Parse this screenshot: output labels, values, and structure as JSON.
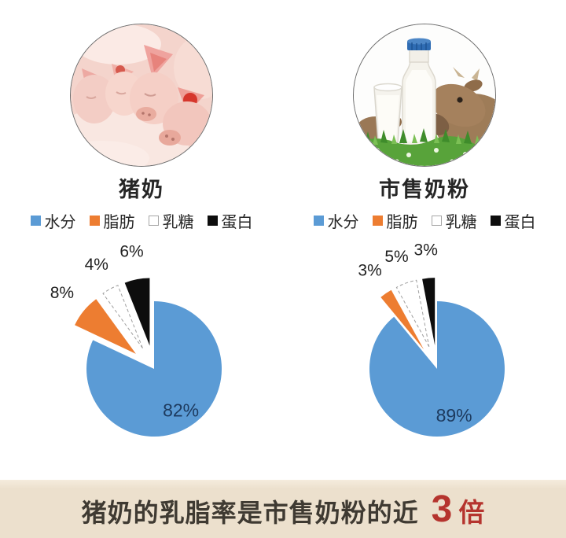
{
  "banner": {
    "prefix": "猪奶的乳脂率是市售奶粉的近",
    "number": "3",
    "suffix": "倍",
    "bg_color": "#ece0cd",
    "text_color": "#3f3a32",
    "highlight_color": "#b5342e"
  },
  "photos": [
    {
      "name": "piglets-photo",
      "alt": "猪奶 - 小猪照片"
    },
    {
      "name": "milk-cow-photo",
      "alt": "市售奶粉 - 牛奶与奶牛照片"
    }
  ],
  "colors": {
    "water_blue": "#5b9bd5",
    "fat_orange": "#ed7d31",
    "lactose_white": "#ffffff",
    "protein_black": "#0d0d0d",
    "inside_label_navy": "#1d3a5e"
  },
  "chart_data": [
    {
      "type": "pie",
      "title": "猪奶",
      "legend_position": "top",
      "start_angle_deg": 0,
      "direction": "clockwise",
      "slices": [
        {
          "label": "水分",
          "value": 82,
          "color": "#5b9bd5",
          "exploded": false,
          "label_inside": true
        },
        {
          "label": "脂肪",
          "value": 8,
          "color": "#ed7d31",
          "exploded": true
        },
        {
          "label": "乳糖",
          "value": 4,
          "color": "#ffffff",
          "stroke": "#9e9e9e",
          "dashed": true,
          "marker_border": "#a6a6a6",
          "exploded": true
        },
        {
          "label": "蛋白",
          "value": 6,
          "color": "#0d0d0d",
          "exploded": true
        }
      ]
    },
    {
      "type": "pie",
      "title": "市售奶粉",
      "legend_position": "top",
      "start_angle_deg": 0,
      "direction": "clockwise",
      "slices": [
        {
          "label": "水分",
          "value": 89,
          "color": "#5b9bd5",
          "exploded": false,
          "label_inside": true
        },
        {
          "label": "脂肪",
          "value": 3,
          "color": "#ed7d31",
          "exploded": true
        },
        {
          "label": "乳糖",
          "value": 5,
          "color": "#ffffff",
          "stroke": "#9e9e9e",
          "dashed": true,
          "marker_border": "#a6a6a6",
          "exploded": true
        },
        {
          "label": "蛋白",
          "value": 3,
          "color": "#0d0d0d",
          "exploded": true
        }
      ]
    }
  ]
}
